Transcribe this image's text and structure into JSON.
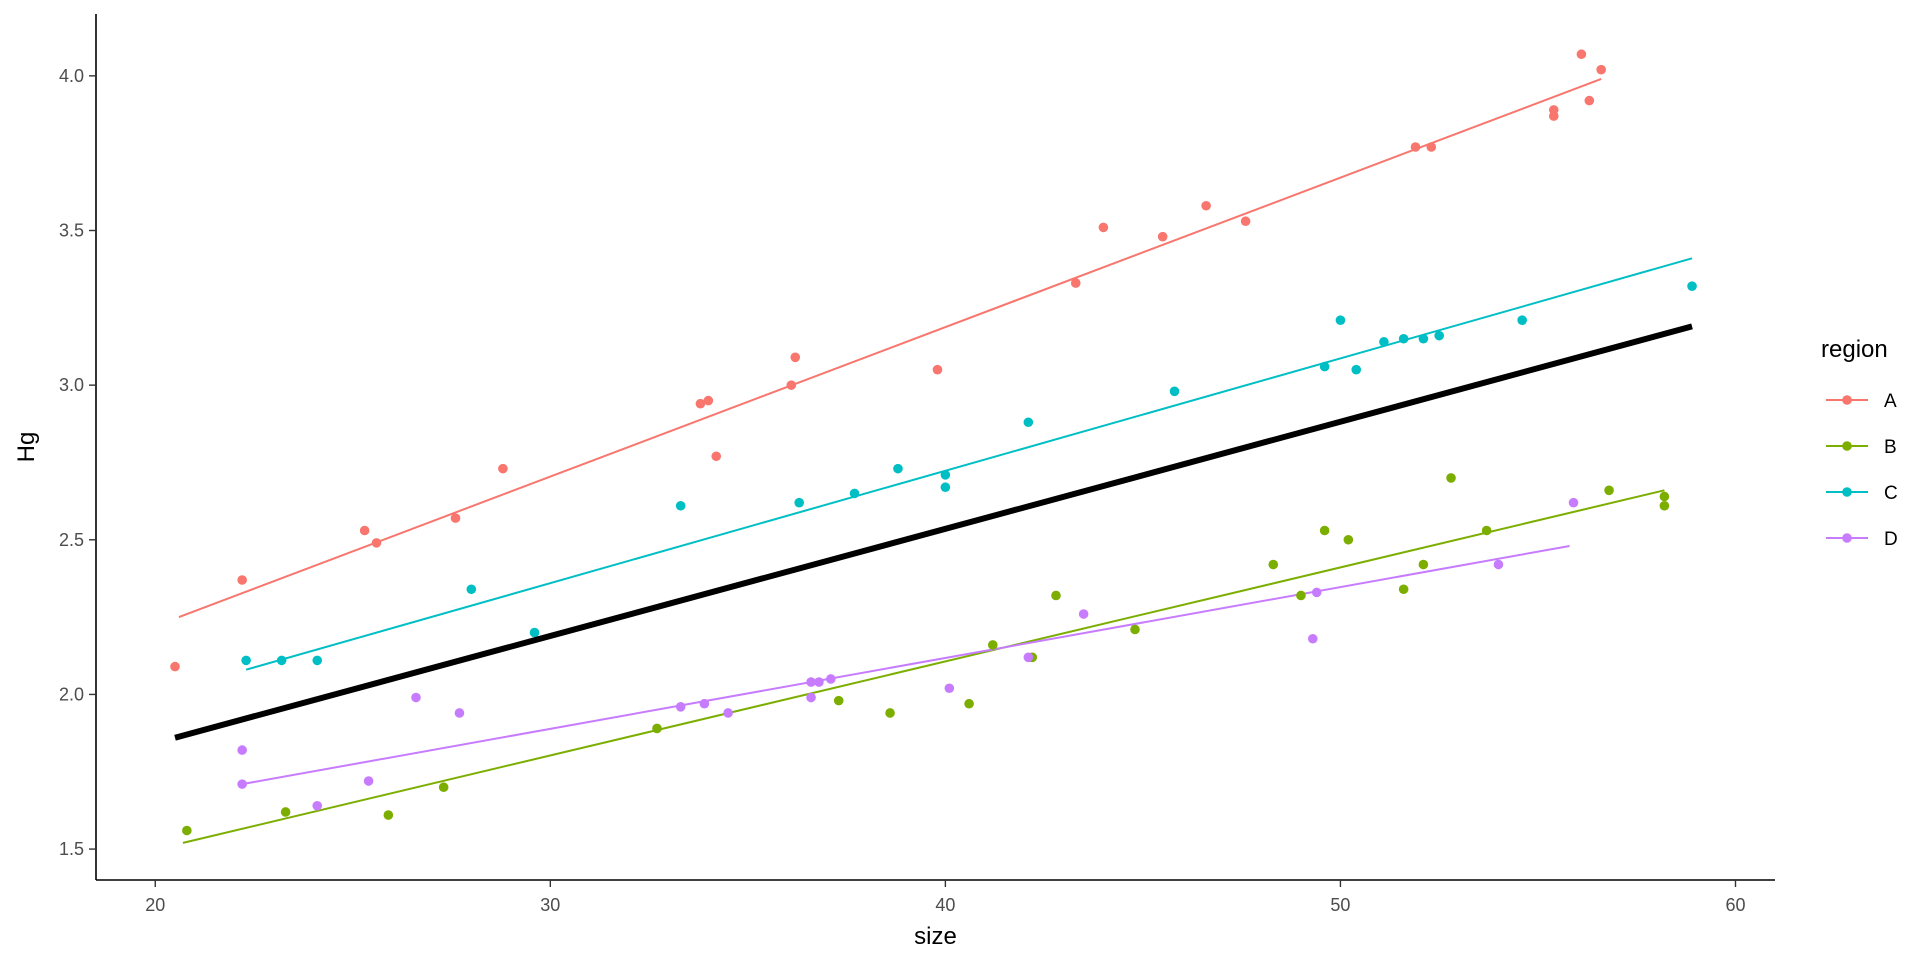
{
  "chart_data": {
    "type": "scatter",
    "xlabel": "size",
    "ylabel": "Hg",
    "xlim": [
      18.5,
      61
    ],
    "ylim": [
      1.4,
      4.2
    ],
    "x_ticks": [
      20,
      30,
      40,
      50,
      60
    ],
    "y_ticks": [
      1.5,
      2.0,
      2.5,
      3.0,
      3.5,
      4.0
    ],
    "x_tick_labels": [
      "20",
      "30",
      "40",
      "50",
      "60"
    ],
    "y_tick_labels": [
      "1.5",
      "2.0",
      "2.5",
      "3.0",
      "3.5",
      "4.0"
    ],
    "grid": false,
    "legend": {
      "title": "region",
      "placement": "right"
    },
    "series": [
      {
        "name": "A",
        "color": "#F8766D",
        "points": [
          [
            20.5,
            2.09
          ],
          [
            22.2,
            2.37
          ],
          [
            25.3,
            2.53
          ],
          [
            25.6,
            2.49
          ],
          [
            27.6,
            2.57
          ],
          [
            28.8,
            2.73
          ],
          [
            33.8,
            2.94
          ],
          [
            34.0,
            2.95
          ],
          [
            34.2,
            2.77
          ],
          [
            36.1,
            3.0
          ],
          [
            36.2,
            3.09
          ],
          [
            39.8,
            3.05
          ],
          [
            43.3,
            3.33
          ],
          [
            44.0,
            3.51
          ],
          [
            45.5,
            3.48
          ],
          [
            46.6,
            3.58
          ],
          [
            47.6,
            3.53
          ],
          [
            51.9,
            3.77
          ],
          [
            52.3,
            3.77
          ],
          [
            55.4,
            3.87
          ],
          [
            55.4,
            3.89
          ],
          [
            56.1,
            4.07
          ],
          [
            56.3,
            3.92
          ],
          [
            56.6,
            4.02
          ]
        ],
        "fit": [
          [
            20.6,
            2.25
          ],
          [
            56.6,
            3.99
          ]
        ]
      },
      {
        "name": "B",
        "color": "#7CAE00",
        "points": [
          [
            20.8,
            1.56
          ],
          [
            23.3,
            1.62
          ],
          [
            25.9,
            1.61
          ],
          [
            27.3,
            1.7
          ],
          [
            32.7,
            1.89
          ],
          [
            37.3,
            1.98
          ],
          [
            38.6,
            1.94
          ],
          [
            40.6,
            1.97
          ],
          [
            41.2,
            2.16
          ],
          [
            42.2,
            2.12
          ],
          [
            42.8,
            2.32
          ],
          [
            44.8,
            2.21
          ],
          [
            48.3,
            2.42
          ],
          [
            49.0,
            2.32
          ],
          [
            49.6,
            2.53
          ],
          [
            50.2,
            2.5
          ],
          [
            51.6,
            2.34
          ],
          [
            52.1,
            2.42
          ],
          [
            52.8,
            2.7
          ],
          [
            53.7,
            2.53
          ],
          [
            56.8,
            2.66
          ],
          [
            58.2,
            2.61
          ],
          [
            58.2,
            2.64
          ]
        ],
        "fit": [
          [
            20.7,
            1.52
          ],
          [
            58.2,
            2.66
          ]
        ]
      },
      {
        "name": "C",
        "color": "#00BFC4",
        "points": [
          [
            22.3,
            2.11
          ],
          [
            23.2,
            2.11
          ],
          [
            24.1,
            2.11
          ],
          [
            28.0,
            2.34
          ],
          [
            29.6,
            2.2
          ],
          [
            33.3,
            2.61
          ],
          [
            36.3,
            2.62
          ],
          [
            37.7,
            2.65
          ],
          [
            38.8,
            2.73
          ],
          [
            40.0,
            2.67
          ],
          [
            40.0,
            2.71
          ],
          [
            42.1,
            2.88
          ],
          [
            45.8,
            2.98
          ],
          [
            49.6,
            3.06
          ],
          [
            50.0,
            3.21
          ],
          [
            50.4,
            3.05
          ],
          [
            51.1,
            3.14
          ],
          [
            51.6,
            3.15
          ],
          [
            52.1,
            3.15
          ],
          [
            52.5,
            3.16
          ],
          [
            54.6,
            3.21
          ],
          [
            58.9,
            3.32
          ]
        ],
        "fit": [
          [
            22.3,
            2.08
          ],
          [
            58.9,
            3.41
          ]
        ]
      },
      {
        "name": "D",
        "color": "#C77CFF",
        "points": [
          [
            22.2,
            1.82
          ],
          [
            22.2,
            1.71
          ],
          [
            24.1,
            1.64
          ],
          [
            25.4,
            1.72
          ],
          [
            26.6,
            1.99
          ],
          [
            27.7,
            1.94
          ],
          [
            33.3,
            1.96
          ],
          [
            33.9,
            1.97
          ],
          [
            34.5,
            1.94
          ],
          [
            36.6,
            2.04
          ],
          [
            36.6,
            1.99
          ],
          [
            36.8,
            2.04
          ],
          [
            37.1,
            2.05
          ],
          [
            40.1,
            2.02
          ],
          [
            42.1,
            2.12
          ],
          [
            43.5,
            2.26
          ],
          [
            49.3,
            2.18
          ],
          [
            49.4,
            2.33
          ],
          [
            54.0,
            2.42
          ],
          [
            55.9,
            2.62
          ]
        ],
        "fit": [
          [
            22.2,
            1.71
          ],
          [
            55.8,
            2.48
          ]
        ]
      }
    ],
    "overall_fit": {
      "color": "#000000",
      "line": [
        [
          20.5,
          1.86
        ],
        [
          58.9,
          3.19
        ]
      ]
    }
  }
}
